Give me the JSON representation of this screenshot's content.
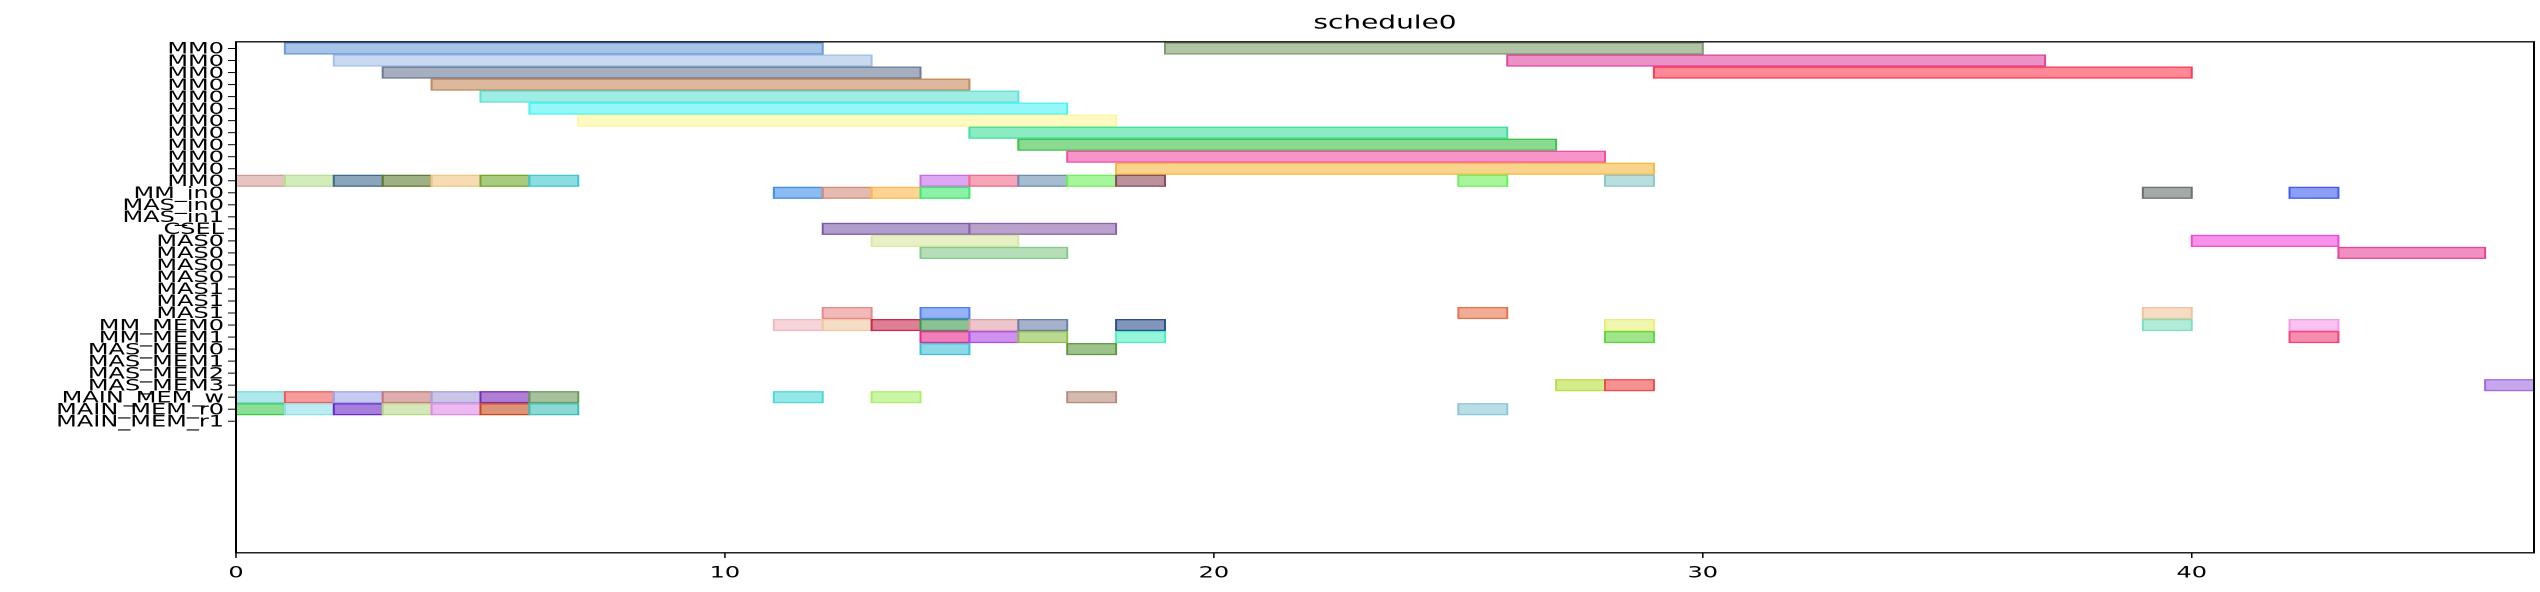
{
  "chart_data": {
    "type": "gantt",
    "title": "schedule0",
    "xlabel": "",
    "ylabel": "",
    "xlim": [
      0,
      47
    ],
    "xticks": [
      0,
      10,
      20,
      30,
      40
    ],
    "grid": false,
    "legend": "none",
    "rows": [
      "MM0",
      "MM0",
      "MM0",
      "MM0",
      "MM0",
      "MM0",
      "MM0",
      "MM0",
      "MM0",
      "MM0",
      "MM0",
      "MM0",
      "MM_in0",
      "MAS_in0",
      "MAS_in1",
      "CSEL",
      "MAS0",
      "MAS0",
      "MAS0",
      "MAS0",
      "MAS1",
      "MAS1",
      "MAS1",
      "MM_MEM0",
      "MM_MEM1",
      "MAS_MEM0",
      "MAS_MEM1",
      "MAS_MEM2",
      "MAS_MEM3",
      "MAIN_MEM_w",
      "MAIN_MEM_r0",
      "MAIN_MEM_r1"
    ],
    "tasks": [
      {
        "row": 0,
        "start": 1,
        "end": 12,
        "color": "#6a9bd8"
      },
      {
        "row": 0,
        "start": 19,
        "end": 30,
        "color": "#7f9c6e"
      },
      {
        "row": 1,
        "start": 2,
        "end": 13,
        "color": "#a3bfe6"
      },
      {
        "row": 1,
        "start": 26,
        "end": 37,
        "color": "#e0479e"
      },
      {
        "row": 2,
        "start": 3,
        "end": 14,
        "color": "#6b7a95"
      },
      {
        "row": 2,
        "start": 29,
        "end": 40,
        "color": "#ff3b52"
      },
      {
        "row": 3,
        "start": 4,
        "end": 15,
        "color": "#c4895a"
      },
      {
        "row": 4,
        "start": 5,
        "end": 16,
        "color": "#5fe3d6"
      },
      {
        "row": 5,
        "start": 6,
        "end": 17,
        "color": "#4df3f3"
      },
      {
        "row": 6,
        "start": 7,
        "end": 18,
        "color": "#fff59a"
      },
      {
        "row": 7,
        "start": 15,
        "end": 26,
        "color": "#3ddf9c"
      },
      {
        "row": 8,
        "start": 16,
        "end": 27,
        "color": "#3ec24a"
      },
      {
        "row": 9,
        "start": 17,
        "end": 28,
        "color": "#f24fa6"
      },
      {
        "row": 10,
        "start": 18,
        "end": 29,
        "color": "#f5b840"
      },
      {
        "row": 11,
        "start": 0,
        "end": 1,
        "color": "#d69c94"
      },
      {
        "row": 11,
        "start": 1,
        "end": 2,
        "color": "#b5e08f"
      },
      {
        "row": 11,
        "start": 2,
        "end": 3,
        "color": "#3e6a8e"
      },
      {
        "row": 11,
        "start": 3,
        "end": 4,
        "color": "#5f7d2e"
      },
      {
        "row": 11,
        "start": 4,
        "end": 5,
        "color": "#f2c480"
      },
      {
        "row": 11,
        "start": 5,
        "end": 6,
        "color": "#6fa82c"
      },
      {
        "row": 11,
        "start": 6,
        "end": 7,
        "color": "#3ec7cf"
      },
      {
        "row": 11,
        "start": 14,
        "end": 15,
        "color": "#c86de8"
      },
      {
        "row": 11,
        "start": 15,
        "end": 16,
        "color": "#f26a8a"
      },
      {
        "row": 11,
        "start": 16,
        "end": 17,
        "color": "#6b8fb0"
      },
      {
        "row": 11,
        "start": 17,
        "end": 18,
        "color": "#6df05a"
      },
      {
        "row": 11,
        "start": 18,
        "end": 19,
        "color": "#8c4a5a"
      },
      {
        "row": 11,
        "start": 25,
        "end": 26,
        "color": "#6df05a"
      },
      {
        "row": 11,
        "start": 28,
        "end": 29,
        "color": "#8cc7c7"
      },
      {
        "row": 12,
        "start": 11,
        "end": 12,
        "color": "#3f8ee8"
      },
      {
        "row": 12,
        "start": 12,
        "end": 13,
        "color": "#d38c7a"
      },
      {
        "row": 12,
        "start": 13,
        "end": 14,
        "color": "#ffb84d"
      },
      {
        "row": 12,
        "start": 14,
        "end": 15,
        "color": "#3ee86a"
      },
      {
        "row": 12,
        "start": 39,
        "end": 40,
        "color": "#6b7070"
      },
      {
        "row": 12,
        "start": 42,
        "end": 43,
        "color": "#3f5ef0"
      },
      {
        "row": 15,
        "start": 12,
        "end": 15,
        "color": "#7b5ba8"
      },
      {
        "row": 15,
        "start": 15,
        "end": 18,
        "color": "#8a63a8"
      },
      {
        "row": 16,
        "start": 13,
        "end": 16,
        "color": "#d8e8a0"
      },
      {
        "row": 16,
        "start": 40,
        "end": 43,
        "color": "#f04ad8"
      },
      {
        "row": 17,
        "start": 14,
        "end": 17,
        "color": "#85c98a"
      },
      {
        "row": 17,
        "start": 43,
        "end": 46,
        "color": "#e8459a"
      },
      {
        "row": 22,
        "start": 12,
        "end": 13,
        "color": "#e88a8a"
      },
      {
        "row": 22,
        "start": 14,
        "end": 15,
        "color": "#4f7ef0"
      },
      {
        "row": 22,
        "start": 25,
        "end": 26,
        "color": "#e8744f"
      },
      {
        "row": 22,
        "start": 39,
        "end": 40,
        "color": "#f0c49a"
      },
      {
        "row": 23,
        "start": 11,
        "end": 12,
        "color": "#f0b8bf"
      },
      {
        "row": 23,
        "start": 12,
        "end": 13,
        "color": "#f0c8a0"
      },
      {
        "row": 23,
        "start": 13,
        "end": 14,
        "color": "#c82a4e"
      },
      {
        "row": 23,
        "start": 14,
        "end": 15,
        "color": "#3c9a4e"
      },
      {
        "row": 23,
        "start": 15,
        "end": 16,
        "color": "#e0a0a8"
      },
      {
        "row": 23,
        "start": 16,
        "end": 17,
        "color": "#6a7fa8"
      },
      {
        "row": 23,
        "start": 18,
        "end": 19,
        "color": "#2e4f8e"
      },
      {
        "row": 23,
        "start": 28,
        "end": 29,
        "color": "#e8f07a"
      },
      {
        "row": 23,
        "start": 39,
        "end": 40,
        "color": "#7fe0c0"
      },
      {
        "row": 23,
        "start": 42,
        "end": 43,
        "color": "#f59ae8"
      },
      {
        "row": 24,
        "start": 14,
        "end": 15,
        "color": "#e82a8e"
      },
      {
        "row": 24,
        "start": 15,
        "end": 16,
        "color": "#b04ae8"
      },
      {
        "row": 24,
        "start": 16,
        "end": 17,
        "color": "#8fbf4a"
      },
      {
        "row": 24,
        "start": 18,
        "end": 19,
        "color": "#4ff0c0"
      },
      {
        "row": 24,
        "start": 28,
        "end": 29,
        "color": "#5fd63e"
      },
      {
        "row": 24,
        "start": 42,
        "end": 43,
        "color": "#f0457a"
      },
      {
        "row": 25,
        "start": 14,
        "end": 15,
        "color": "#3fbfd8"
      },
      {
        "row": 25,
        "start": 17,
        "end": 18,
        "color": "#5e9a3e"
      },
      {
        "row": 28,
        "start": 27,
        "end": 28,
        "color": "#b8e03e"
      },
      {
        "row": 28,
        "start": 28,
        "end": 29,
        "color": "#f04a4a"
      },
      {
        "row": 28,
        "start": 46,
        "end": 47,
        "color": "#a06ae0"
      },
      {
        "row": 29,
        "start": 0,
        "end": 1,
        "color": "#7ad8e0"
      },
      {
        "row": 29,
        "start": 1,
        "end": 2,
        "color": "#f05a5a"
      },
      {
        "row": 29,
        "start": 2,
        "end": 3,
        "color": "#a0a8e8"
      },
      {
        "row": 29,
        "start": 3,
        "end": 4,
        "color": "#c8787a"
      },
      {
        "row": 29,
        "start": 4,
        "end": 5,
        "color": "#a8a0d8"
      },
      {
        "row": 29,
        "start": 5,
        "end": 6,
        "color": "#7a2ab8"
      },
      {
        "row": 29,
        "start": 6,
        "end": 7,
        "color": "#6a9a5a"
      },
      {
        "row": 29,
        "start": 11,
        "end": 12,
        "color": "#4ed8d8"
      },
      {
        "row": 29,
        "start": 13,
        "end": 14,
        "color": "#a8f06a"
      },
      {
        "row": 29,
        "start": 17,
        "end": 18,
        "color": "#b88a7a"
      },
      {
        "row": 30,
        "start": 0,
        "end": 1,
        "color": "#3ec84e"
      },
      {
        "row": 30,
        "start": 1,
        "end": 2,
        "color": "#8fe0e8"
      },
      {
        "row": 30,
        "start": 2,
        "end": 3,
        "color": "#6a2ac8"
      },
      {
        "row": 30,
        "start": 3,
        "end": 4,
        "color": "#b8d88a"
      },
      {
        "row": 30,
        "start": 4,
        "end": 5,
        "color": "#e08ae8"
      },
      {
        "row": 30,
        "start": 5,
        "end": 6,
        "color": "#c84a1a"
      },
      {
        "row": 30,
        "start": 6,
        "end": 7,
        "color": "#3ec0b8"
      },
      {
        "row": 30,
        "start": 25,
        "end": 26,
        "color": "#8ac8d8"
      }
    ]
  }
}
